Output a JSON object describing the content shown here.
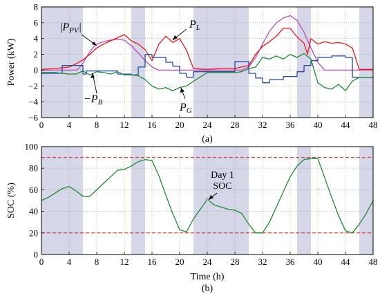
{
  "colors": {
    "shade": "#d5d6e8",
    "pv": "#b847b8",
    "load": "#e8191a",
    "battery": "#2747a3",
    "grid": "#1e8a32",
    "soc": "#1e8a32",
    "limit": "#e8191a"
  },
  "chart_data": [
    {
      "type": "line",
      "panel": "top",
      "caption": "(a)",
      "xlabel": "",
      "ylabel": "Power (kW)",
      "xlim": [
        0,
        48
      ],
      "ylim": [
        -6,
        8
      ],
      "xticks": [
        0,
        4,
        8,
        12,
        16,
        20,
        24,
        28,
        32,
        36,
        40,
        44,
        48
      ],
      "yticks": [
        -6,
        -4,
        -2,
        0,
        2,
        4,
        6,
        8
      ],
      "grid": true,
      "shaded_intervals": [
        [
          0,
          6
        ],
        [
          13,
          15
        ],
        [
          22,
          30
        ],
        [
          37,
          39
        ],
        [
          46,
          48
        ]
      ],
      "series": [
        {
          "name": "|P_PV|",
          "color_key": "pv",
          "x": [
            0,
            5,
            5.5,
            6,
            6.5,
            7,
            7.5,
            8,
            9,
            10,
            11,
            12,
            13,
            14,
            15,
            16,
            17,
            18,
            24,
            29,
            30,
            31,
            32,
            33,
            34,
            35,
            36,
            37,
            38,
            39,
            40,
            41,
            48
          ],
          "y": [
            0,
            0,
            0.3,
            0.9,
            1.6,
            2.3,
            2.9,
            3.3,
            3.6,
            3.8,
            3.9,
            3.8,
            3.1,
            2.2,
            1.2,
            0.4,
            0,
            0,
            0,
            0,
            0.4,
            1.6,
            3.3,
            4.9,
            6.0,
            6.6,
            6.9,
            6.3,
            4.8,
            2.8,
            1.0,
            0,
            0
          ]
        },
        {
          "name": "P_L",
          "color_key": "load",
          "x": [
            0,
            2,
            4,
            5,
            6,
            7,
            8,
            9,
            10,
            11,
            12,
            13,
            14,
            15,
            16,
            17,
            18,
            19,
            20,
            21,
            22,
            24,
            26,
            28,
            29,
            30,
            31,
            32,
            33,
            34,
            35,
            36,
            37,
            38,
            38.5,
            39,
            40,
            41,
            42,
            43,
            44,
            45,
            46,
            48
          ],
          "y": [
            0.1,
            0.2,
            0.4,
            0.8,
            1.3,
            2.0,
            2.8,
            3.3,
            3.7,
            4.1,
            4.5,
            3.7,
            3.3,
            2.6,
            1.2,
            3.3,
            4.3,
            3.5,
            4.0,
            2.5,
            0.2,
            0.1,
            0.2,
            0.2,
            0.4,
            0.6,
            2.0,
            3.0,
            3.6,
            4.3,
            5.3,
            5.3,
            4.2,
            3.4,
            2.0,
            4.0,
            3.3,
            3.6,
            3.4,
            3.5,
            3.3,
            2.8,
            0.1,
            0.1
          ]
        },
        {
          "name": "-P_B",
          "color_key": "battery",
          "x": [
            0,
            3,
            3.01,
            6,
            6.01,
            6.5,
            6.51,
            11,
            11.01,
            13,
            13.01,
            14,
            14.01,
            15,
            15.01,
            16,
            16.01,
            18,
            18.01,
            19,
            19.01,
            20,
            20.01,
            21,
            21.01,
            22,
            22.01,
            28,
            28.01,
            30,
            30.01,
            31,
            31.01,
            32,
            32.01,
            33,
            33.01,
            35,
            35.01,
            37,
            37.01,
            38,
            38.01,
            39,
            39.01,
            40,
            40.01,
            42,
            42.01,
            44,
            44.01,
            45,
            45.01,
            48
          ],
          "y": [
            -0.4,
            -0.4,
            0.6,
            0.6,
            -0.5,
            -0.5,
            -0.1,
            -0.1,
            -0.5,
            -0.5,
            -0.6,
            -0.6,
            0.4,
            0.4,
            2.0,
            2.0,
            1.6,
            1.6,
            1.0,
            1.0,
            0.5,
            0.5,
            -0.4,
            -0.4,
            -0.9,
            -0.9,
            -0.2,
            -0.2,
            1.1,
            1.1,
            -0.4,
            -0.4,
            -1.0,
            -1.0,
            -1.6,
            -1.6,
            -1.2,
            -1.2,
            -0.8,
            -0.8,
            -0.2,
            -0.2,
            0.6,
            0.6,
            1.2,
            1.2,
            1.6,
            1.6,
            1.8,
            1.8,
            1.6,
            1.6,
            -0.9,
            -0.9
          ]
        },
        {
          "name": "P_G",
          "color_key": "grid",
          "x": [
            0,
            2,
            4,
            5,
            6,
            7,
            8,
            9,
            10,
            11,
            12,
            13,
            14,
            15,
            16,
            17,
            18,
            19,
            20,
            21,
            22,
            24,
            28,
            29,
            30,
            31,
            32,
            33,
            34,
            35,
            36,
            37,
            38,
            39,
            40,
            41,
            42,
            43,
            44,
            45,
            46,
            48
          ],
          "y": [
            -0.3,
            -0.3,
            -0.5,
            -0.5,
            -0.1,
            -0.6,
            -0.2,
            -0.3,
            -0.5,
            -0.2,
            -0.6,
            -0.6,
            -0.7,
            -1.2,
            -2.0,
            -2.4,
            -2.2,
            -2.6,
            -2.2,
            -2.0,
            -1.4,
            -0.3,
            -0.3,
            -0.2,
            0.2,
            0.4,
            1.6,
            1.4,
            1.8,
            1.4,
            2.0,
            1.6,
            2.1,
            1.4,
            -1.6,
            -2.2,
            -2.4,
            -1.8,
            -2.6,
            -1.4,
            -0.9,
            -0.9
          ]
        }
      ],
      "annotations": [
        {
          "label_key": "pv",
          "text": "|P",
          "sub": "PV",
          "close": "|"
        },
        {
          "label_key": "load",
          "text": "P",
          "sub": "L"
        },
        {
          "label_key": "battery",
          "text": "−P",
          "sub": "B"
        },
        {
          "label_key": "grid",
          "text": "P",
          "sub": "G"
        }
      ]
    },
    {
      "type": "line",
      "panel": "bottom",
      "caption": "(b)",
      "xlabel": "Time (h)",
      "ylabel": "SOC (%)",
      "xlim": [
        0,
        48
      ],
      "ylim": [
        0,
        100
      ],
      "xticks": [
        0,
        4,
        8,
        12,
        16,
        20,
        24,
        28,
        32,
        36,
        40,
        44,
        48
      ],
      "yticks": [
        0,
        20,
        40,
        60,
        80,
        100
      ],
      "grid": true,
      "shaded_intervals": [
        [
          0,
          6
        ],
        [
          13,
          15
        ],
        [
          22,
          30
        ],
        [
          37,
          39
        ],
        [
          46,
          48
        ]
      ],
      "limits": [
        90,
        20
      ],
      "series": [
        {
          "name": "SOC",
          "color_key": "soc",
          "x": [
            0,
            1,
            2,
            3,
            4,
            5,
            6,
            7,
            8,
            9,
            10,
            11,
            12,
            13,
            14,
            15,
            16,
            17,
            18,
            19,
            20,
            21,
            22,
            23,
            24,
            25,
            26,
            27,
            28,
            29,
            30,
            31,
            32,
            33,
            34,
            35,
            36,
            37,
            38,
            39,
            40,
            41,
            42,
            43,
            44,
            45,
            46,
            47,
            48
          ],
          "y": [
            50,
            53,
            57,
            61,
            63,
            59,
            54,
            54,
            60,
            66,
            72,
            78,
            79,
            82,
            86,
            88,
            87,
            73,
            55,
            38,
            23,
            21,
            33,
            42,
            51,
            46,
            44,
            42,
            41,
            38,
            28,
            20,
            20,
            30,
            44,
            58,
            72,
            82,
            88,
            89,
            89,
            71,
            53,
            36,
            22,
            20,
            28,
            38,
            50
          ]
        }
      ],
      "annotations": [
        {
          "line1": "Day 1",
          "line2": "SOC",
          "x": 24,
          "y": 51
        }
      ]
    }
  ]
}
